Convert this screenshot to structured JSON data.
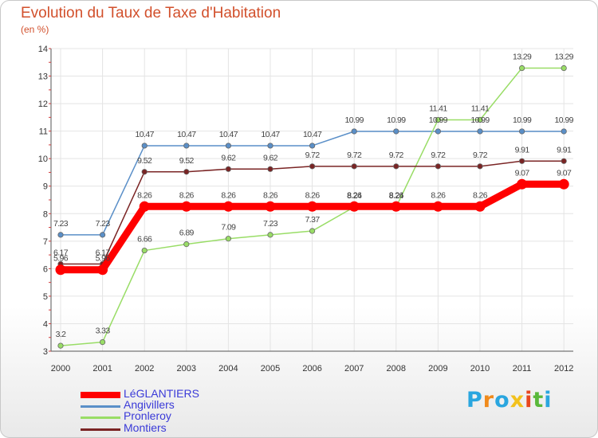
{
  "chart_data": {
    "type": "line",
    "title": "Evolution du Taux de Taxe d'Habitation",
    "ylabel": "(en %)",
    "xlabel": "",
    "ylim": [
      3,
      14
    ],
    "yticks": [
      "3",
      "4",
      "5",
      "6",
      "7",
      "8",
      "9",
      "10",
      "11",
      "12",
      "13",
      "14"
    ],
    "x": [
      "2000",
      "2001",
      "2002",
      "2003",
      "2004",
      "2005",
      "2006",
      "2007",
      "2008",
      "2009",
      "2010",
      "2011",
      "2012"
    ],
    "series": [
      {
        "name": "LéGLANTIERS",
        "color": "#ff0000",
        "values": [
          5.96,
          5.96,
          8.26,
          8.26,
          8.26,
          8.26,
          8.26,
          8.26,
          8.26,
          8.26,
          8.26,
          9.07,
          9.07
        ],
        "labels": [
          "5.96",
          "5.96",
          "8.26",
          "8.26",
          "8.26",
          "8.26",
          "8.26",
          "8.26",
          "8.26",
          "8.26",
          "8.26",
          "9.07",
          "9.07"
        ]
      },
      {
        "name": "Angivillers",
        "color": "#5a8fc8",
        "values": [
          7.23,
          7.23,
          10.47,
          10.47,
          10.47,
          10.47,
          10.47,
          10.99,
          10.99,
          10.99,
          10.99,
          10.99,
          10.99
        ],
        "labels": [
          "7.23",
          "7.23",
          "10.47",
          "10.47",
          "10.47",
          "10.47",
          "10.47",
          "10.99",
          "10.99",
          "10.99",
          "10.99",
          "10.99",
          "10.99"
        ]
      },
      {
        "name": "Pronleroy",
        "color": "#99dd66",
        "values": [
          3.2,
          3.33,
          6.66,
          6.89,
          7.09,
          7.23,
          7.37,
          8.24,
          8.24,
          11.41,
          11.41,
          13.29,
          13.29
        ],
        "labels": [
          "3.2",
          "3.33",
          "6.66",
          "6.89",
          "7.09",
          "7.23",
          "7.37",
          "8.24",
          "8.24",
          "11.41",
          "11.41",
          "13.29",
          "13.29"
        ]
      },
      {
        "name": "Montiers",
        "color": "#7a2424",
        "values": [
          6.17,
          6.17,
          9.52,
          9.52,
          9.62,
          9.62,
          9.72,
          9.72,
          9.72,
          9.72,
          9.72,
          9.91,
          9.91
        ],
        "labels": [
          "6.17",
          "6.17",
          "9.52",
          "9.52",
          "9.62",
          "9.62",
          "9.72",
          "9.72",
          "9.72",
          "9.72",
          "9.72",
          "9.91",
          "9.91"
        ]
      }
    ],
    "legend_position": "bottom-left"
  },
  "brand": {
    "letters": [
      "P",
      "r",
      "o",
      "x",
      "i",
      "t",
      "i"
    ],
    "colors": [
      "#2aa6df",
      "#f08a1c",
      "#2aa6df",
      "#f2c11c",
      "#e8461e",
      "#5ab83a",
      "#2aa6df"
    ]
  }
}
